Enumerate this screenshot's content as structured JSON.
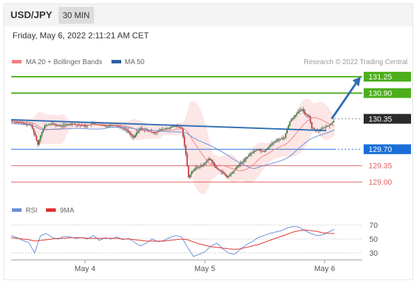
{
  "header": {
    "pair": "USD/JPY",
    "interval": "30 MIN"
  },
  "timestamp": "Friday, May 6, 2022 2:11:21 AM CET",
  "legend": [
    {
      "label": "MA 20 + Bollinger Bands",
      "color": "#f08080"
    },
    {
      "label": "MA 50",
      "color": "#2e5f9e"
    }
  ],
  "credit": "Research © 2022 Trading Central",
  "rsi_legend": [
    {
      "label": "RSI",
      "color": "#6a8fd8"
    },
    {
      "label": "9MA",
      "color": "#e03030"
    }
  ],
  "colors": {
    "resistance": "#4caf1a",
    "support_pivot": "#1a6fd8",
    "support": "#e06060",
    "arrow": "#2e6db3",
    "current": "#2b2b2b"
  },
  "chart_data": [
    {
      "type": "candlestick",
      "ylim": [
        128.75,
        131.4
      ],
      "x_labels": [
        "May 4",
        "May 5",
        "May 6"
      ],
      "levels": [
        {
          "value": "131.25",
          "kind": "resistance"
        },
        {
          "value": "130.90",
          "kind": "resistance"
        },
        {
          "value": "130.35",
          "kind": "current"
        },
        {
          "value": "129.70",
          "kind": "pivot"
        },
        {
          "value": "129.35",
          "kind": "support"
        },
        {
          "value": "129.00",
          "kind": "support"
        }
      ],
      "price_path": [
        [
          0,
          130.3
        ],
        [
          5,
          130.28
        ],
        [
          10,
          130.25
        ],
        [
          15,
          130.22
        ],
        [
          18,
          129.98
        ],
        [
          20,
          129.8
        ],
        [
          22,
          130.0
        ],
        [
          25,
          130.2
        ],
        [
          30,
          130.25
        ],
        [
          35,
          130.2
        ],
        [
          40,
          130.22
        ],
        [
          45,
          130.25
        ],
        [
          50,
          130.22
        ],
        [
          55,
          130.2
        ],
        [
          60,
          130.25
        ],
        [
          65,
          130.22
        ],
        [
          70,
          130.2
        ],
        [
          75,
          130.22
        ],
        [
          80,
          130.18
        ],
        [
          85,
          130.1
        ],
        [
          88,
          130.0
        ],
        [
          90,
          129.95
        ],
        [
          92,
          130.05
        ],
        [
          95,
          130.15
        ],
        [
          100,
          130.1
        ],
        [
          105,
          130.05
        ],
        [
          110,
          130.12
        ],
        [
          115,
          130.15
        ],
        [
          120,
          130.2
        ],
        [
          125,
          130.15
        ],
        [
          128,
          129.6
        ],
        [
          130,
          129.1
        ],
        [
          132,
          129.2
        ],
        [
          135,
          129.3
        ],
        [
          140,
          129.35
        ],
        [
          145,
          129.5
        ],
        [
          148,
          129.4
        ],
        [
          150,
          129.3
        ],
        [
          155,
          129.2
        ],
        [
          158,
          129.1
        ],
        [
          162,
          129.2
        ],
        [
          166,
          129.35
        ],
        [
          170,
          129.45
        ],
        [
          175,
          129.6
        ],
        [
          180,
          129.7
        ],
        [
          185,
          129.65
        ],
        [
          190,
          129.8
        ],
        [
          195,
          129.9
        ],
        [
          200,
          129.95
        ],
        [
          204,
          130.3
        ],
        [
          207,
          130.4
        ],
        [
          210,
          130.5
        ],
        [
          213,
          130.55
        ],
        [
          215,
          130.45
        ],
        [
          218,
          130.4
        ],
        [
          220,
          130.15
        ],
        [
          224,
          130.1
        ],
        [
          228,
          130.15
        ],
        [
          232,
          130.2
        ],
        [
          236,
          130.3
        ]
      ],
      "trendline": {
        "from": [
          0,
          130.33
        ],
        "to": [
          230,
          130.1
        ]
      },
      "arrow": {
        "from": [
          232,
          130.35
        ],
        "to": [
          250,
          131.25
        ]
      }
    },
    {
      "type": "line",
      "title": "RSI",
      "yticks": [
        "70",
        "50",
        "30"
      ],
      "ylim": [
        20,
        80
      ],
      "series": [
        {
          "name": "RSI",
          "values": [
            55,
            52,
            48,
            45,
            30,
            55,
            58,
            52,
            50,
            54,
            53,
            51,
            52,
            50,
            55,
            48,
            52,
            50,
            53,
            49,
            51,
            45,
            40,
            44,
            50,
            46,
            48,
            52,
            55,
            53,
            38,
            25,
            28,
            32,
            40,
            44,
            36,
            30,
            28,
            35,
            42,
            46,
            52,
            55,
            58,
            60,
            62,
            66,
            68,
            67,
            62,
            58,
            55,
            56,
            60,
            64
          ]
        },
        {
          "name": "9MA",
          "values": [
            52,
            51,
            50,
            49,
            47,
            48,
            49,
            50,
            51,
            51,
            52,
            52,
            52,
            51,
            51,
            51,
            51,
            51,
            51,
            50,
            50,
            49,
            48,
            47,
            47,
            47,
            47,
            48,
            49,
            50,
            49,
            46,
            43,
            41,
            39,
            38,
            37,
            36,
            35,
            36,
            38,
            40,
            42,
            45,
            48,
            51,
            54,
            57,
            60,
            62,
            63,
            62,
            61,
            59,
            58,
            58
          ]
        }
      ]
    }
  ]
}
